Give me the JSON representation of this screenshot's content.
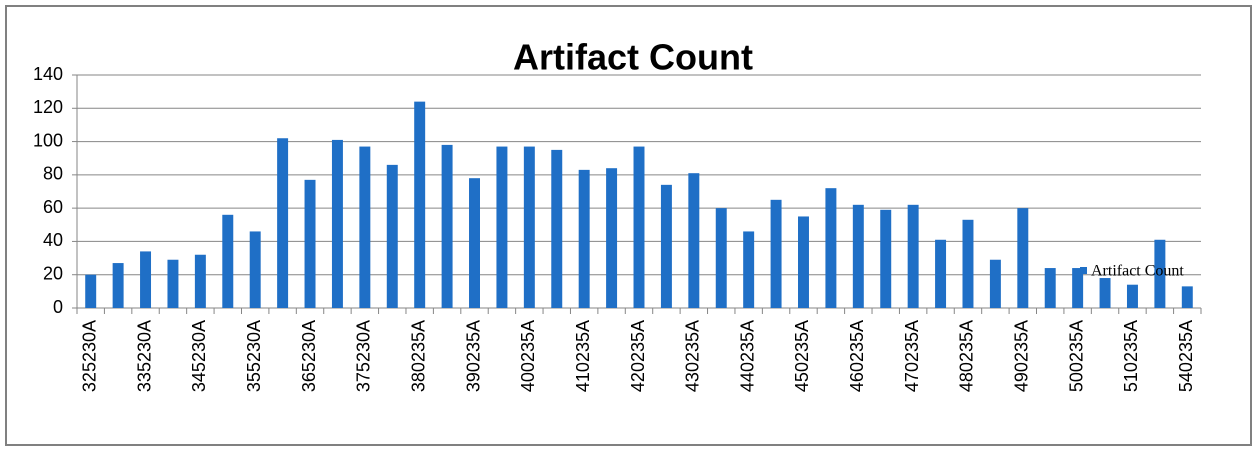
{
  "chart_data": {
    "type": "bar",
    "title": "Artifact Count",
    "categories": [
      "325230A",
      null,
      "335230A",
      null,
      "345230A",
      null,
      "355230A",
      null,
      "365230A",
      null,
      "375230A",
      null,
      "380235A",
      null,
      "390235A",
      null,
      "400235A",
      null,
      "410235A",
      null,
      "420235A",
      null,
      "430235A",
      null,
      "440235A",
      null,
      "450235A",
      null,
      "460235A",
      null,
      "470235A",
      null,
      "480235A",
      null,
      "490235A",
      null,
      "500235A",
      null,
      "510235A",
      null,
      "540235A"
    ],
    "series": [
      {
        "name": "Artifact Count",
        "color": "#1f6fc6",
        "values": [
          20,
          27,
          34,
          29,
          32,
          56,
          46,
          102,
          77,
          101,
          97,
          86,
          124,
          98,
          78,
          97,
          97,
          95,
          83,
          84,
          97,
          74,
          81,
          60,
          46,
          65,
          55,
          72,
          62,
          59,
          62,
          41,
          53,
          29,
          60,
          24,
          24,
          18,
          14,
          41,
          13
        ]
      }
    ],
    "ylim": [
      0,
      140
    ],
    "yticks": [
      0,
      20,
      40,
      60,
      80,
      100,
      120,
      140
    ],
    "grid": true,
    "legend": "right"
  }
}
